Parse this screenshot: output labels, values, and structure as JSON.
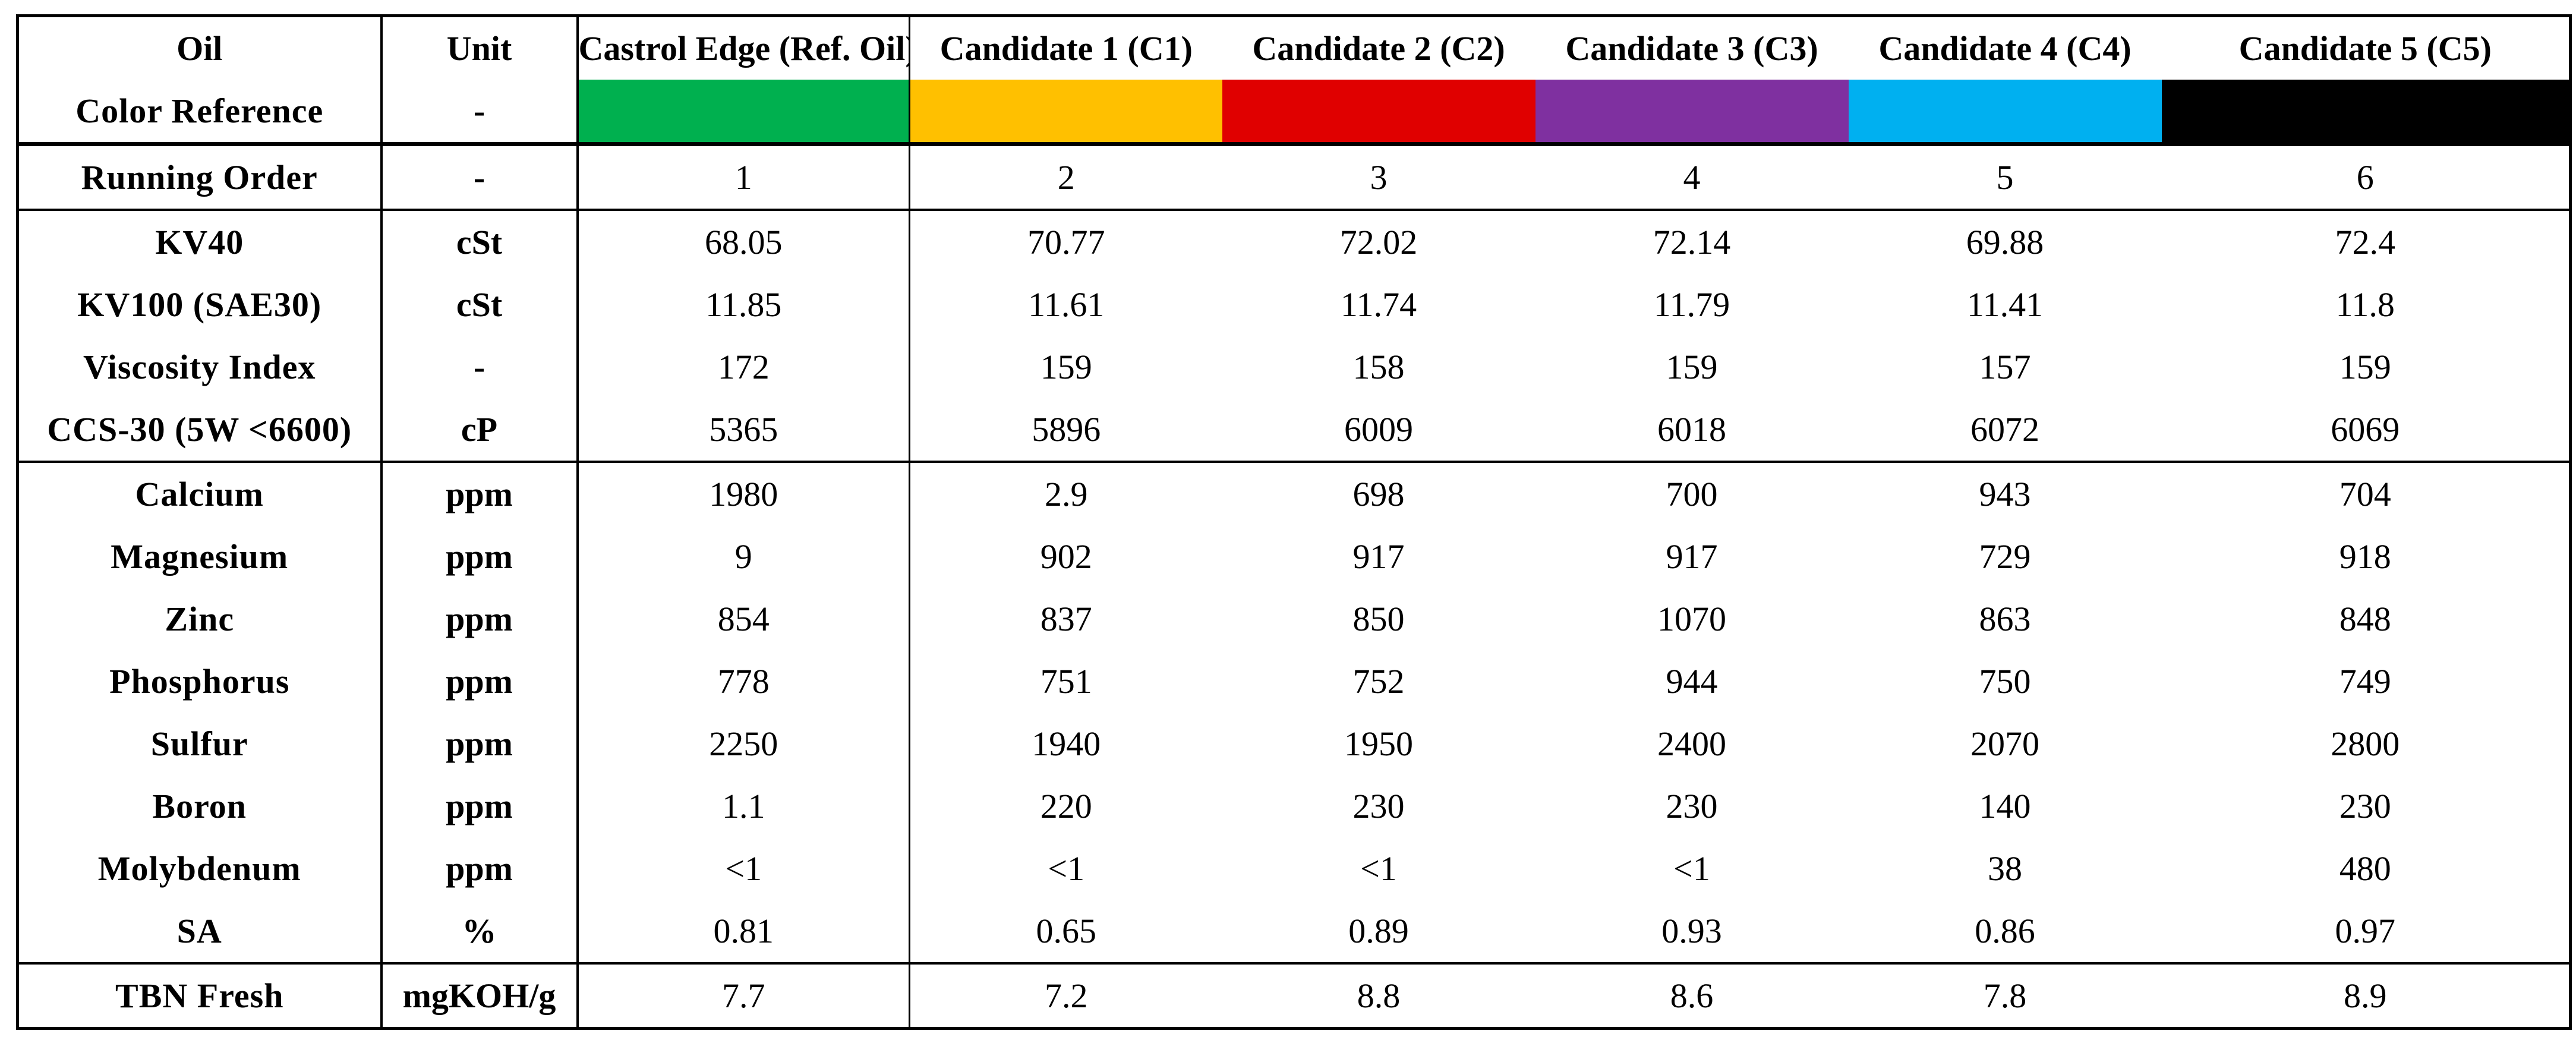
{
  "header": {
    "oil_label": "Oil",
    "unit_label": "Unit",
    "columns": [
      "Castrol Edge (Ref. Oil)",
      "Candidate 1 (C1)",
      "Candidate 2 (C2)",
      "Candidate 3 (C3)",
      "Candidate 4 (C4)",
      "Candidate 5 (C5)"
    ]
  },
  "color_reference": {
    "label": "Color Reference",
    "unit": "-",
    "colors": [
      "#00b04f",
      "#ffc000",
      "#e00000",
      "#7f30a0",
      "#00b0f0",
      "#000000"
    ]
  },
  "rows": [
    {
      "label": "Running Order",
      "unit": "-",
      "values": [
        "1",
        "2",
        "3",
        "4",
        "5",
        "6"
      ]
    },
    {
      "label": "KV40",
      "unit": "cSt",
      "values": [
        "68.05",
        "70.77",
        "72.02",
        "72.14",
        "69.88",
        "72.4"
      ]
    },
    {
      "label": "KV100 (SAE30)",
      "unit": "cSt",
      "values": [
        "11.85",
        "11.61",
        "11.74",
        "11.79",
        "11.41",
        "11.8"
      ]
    },
    {
      "label": "Viscosity Index",
      "unit": "-",
      "values": [
        "172",
        "159",
        "158",
        "159",
        "157",
        "159"
      ]
    },
    {
      "label": "CCS-30 (5W <6600)",
      "unit": "cP",
      "values": [
        "5365",
        "5896",
        "6009",
        "6018",
        "6072",
        "6069"
      ]
    },
    {
      "label": "Calcium",
      "unit": "ppm",
      "values": [
        "1980",
        "2.9",
        "698",
        "700",
        "943",
        "704"
      ]
    },
    {
      "label": "Magnesium",
      "unit": "ppm",
      "values": [
        "9",
        "902",
        "917",
        "917",
        "729",
        "918"
      ]
    },
    {
      "label": "Zinc",
      "unit": "ppm",
      "values": [
        "854",
        "837",
        "850",
        "1070",
        "863",
        "848"
      ]
    },
    {
      "label": "Phosphorus",
      "unit": "ppm",
      "values": [
        "778",
        "751",
        "752",
        "944",
        "750",
        "749"
      ]
    },
    {
      "label": "Sulfur",
      "unit": "ppm",
      "values": [
        "2250",
        "1940",
        "1950",
        "2400",
        "2070",
        "2800"
      ]
    },
    {
      "label": "Boron",
      "unit": "ppm",
      "values": [
        "1.1",
        "220",
        "230",
        "230",
        "140",
        "230"
      ]
    },
    {
      "label": "Molybdenum",
      "unit": "ppm",
      "values": [
        "<1",
        "<1",
        "<1",
        "<1",
        "38",
        "480"
      ]
    },
    {
      "label": "SA",
      "unit": "%",
      "values": [
        "0.81",
        "0.65",
        "0.89",
        "0.93",
        "0.86",
        "0.97"
      ]
    },
    {
      "label": "TBN Fresh",
      "unit": "mgKOH/g",
      "values": [
        "7.7",
        "7.2",
        "8.8",
        "8.6",
        "7.8",
        "8.9"
      ]
    }
  ]
}
